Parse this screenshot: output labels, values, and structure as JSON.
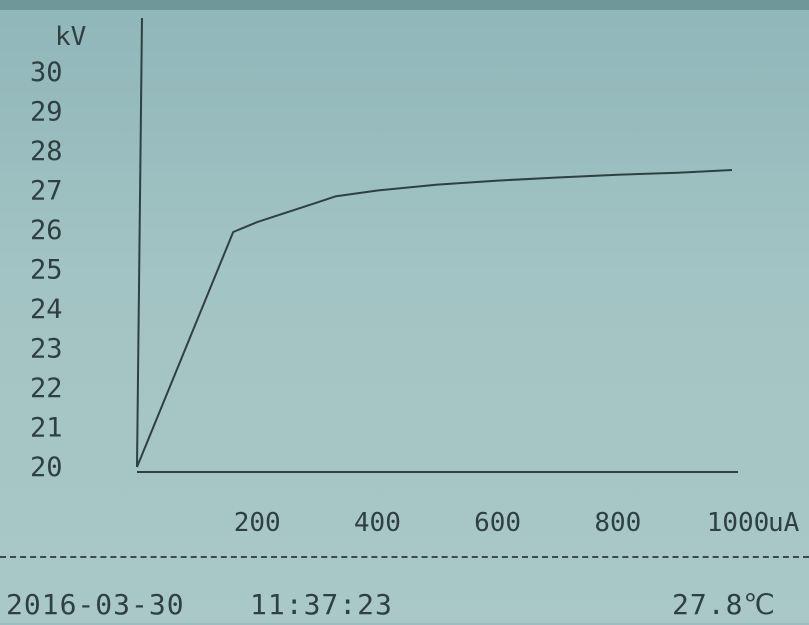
{
  "chart_data": {
    "type": "line",
    "xlabel": "",
    "ylabel": "",
    "x_unit": "uA",
    "y_unit": "kV",
    "xlim": [
      0,
      1000
    ],
    "ylim": [
      20,
      30
    ],
    "x_ticks": [
      200,
      400,
      600,
      800,
      1000
    ],
    "y_ticks": [
      20,
      21,
      22,
      23,
      24,
      25,
      26,
      27,
      28,
      29,
      30
    ],
    "grid": false,
    "series": [
      {
        "x": [
          0,
          160,
          200,
          300,
          330,
          400,
          500,
          600,
          700,
          800,
          900,
          990
        ],
        "y": [
          20.0,
          25.95,
          26.2,
          26.7,
          26.85,
          27.0,
          27.15,
          27.25,
          27.33,
          27.4,
          27.45,
          27.52
        ]
      }
    ]
  },
  "status": {
    "date": "2016-03-30",
    "time": "11:37:23",
    "temperature": "27.8℃"
  },
  "colors": {
    "ink": "#2f3f42",
    "background": "#9cbec0"
  }
}
